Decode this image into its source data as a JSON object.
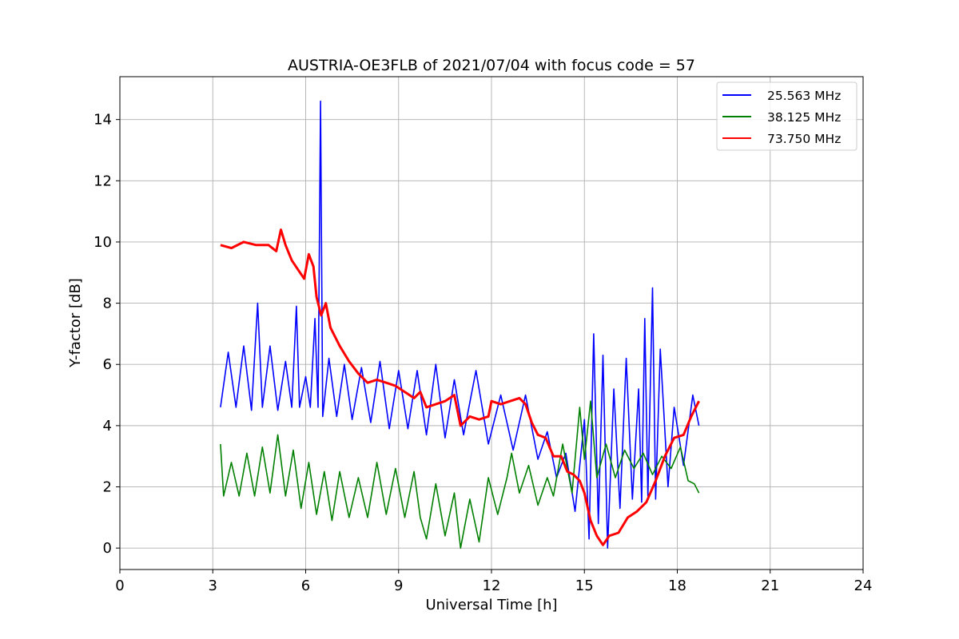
{
  "chart_data": {
    "type": "line",
    "title": "AUSTRIA-OE3FLB of 2021/07/04 with focus code = 57",
    "xlabel": "Universal Time [h]",
    "ylabel": "Y-factor [dB]",
    "xlim": [
      0,
      24
    ],
    "ylim": [
      -0.7,
      15.4
    ],
    "xticks": [
      0,
      3,
      6,
      9,
      12,
      15,
      18,
      21,
      24
    ],
    "yticks": [
      0,
      2,
      4,
      6,
      8,
      10,
      12,
      14
    ],
    "grid": true,
    "legend_position": "top-right",
    "series": [
      {
        "name": "25.563 MHz",
        "color": "#0000ff",
        "points": [
          [
            3.25,
            4.6
          ],
          [
            3.5,
            6.4
          ],
          [
            3.75,
            4.6
          ],
          [
            4.0,
            6.6
          ],
          [
            4.25,
            4.5
          ],
          [
            4.45,
            8.0
          ],
          [
            4.6,
            4.6
          ],
          [
            4.85,
            6.6
          ],
          [
            5.1,
            4.5
          ],
          [
            5.35,
            6.1
          ],
          [
            5.55,
            4.6
          ],
          [
            5.7,
            7.9
          ],
          [
            5.8,
            4.6
          ],
          [
            6.0,
            5.6
          ],
          [
            6.15,
            4.6
          ],
          [
            6.3,
            7.5
          ],
          [
            6.4,
            4.6
          ],
          [
            6.48,
            14.6
          ],
          [
            6.55,
            4.3
          ],
          [
            6.75,
            6.2
          ],
          [
            7.0,
            4.3
          ],
          [
            7.25,
            6.0
          ],
          [
            7.5,
            4.2
          ],
          [
            7.8,
            5.9
          ],
          [
            8.1,
            4.1
          ],
          [
            8.4,
            6.1
          ],
          [
            8.7,
            3.9
          ],
          [
            9.0,
            5.8
          ],
          [
            9.3,
            3.9
          ],
          [
            9.6,
            5.8
          ],
          [
            9.9,
            3.7
          ],
          [
            10.2,
            6.0
          ],
          [
            10.5,
            3.6
          ],
          [
            10.8,
            5.5
          ],
          [
            11.1,
            3.7
          ],
          [
            11.5,
            5.8
          ],
          [
            11.9,
            3.4
          ],
          [
            12.3,
            5.0
          ],
          [
            12.7,
            3.2
          ],
          [
            13.1,
            5.0
          ],
          [
            13.5,
            2.9
          ],
          [
            13.8,
            3.8
          ],
          [
            14.1,
            2.3
          ],
          [
            14.4,
            3.1
          ],
          [
            14.7,
            1.2
          ],
          [
            15.0,
            4.2
          ],
          [
            15.15,
            0.3
          ],
          [
            15.3,
            7.0
          ],
          [
            15.45,
            0.8
          ],
          [
            15.6,
            6.3
          ],
          [
            15.75,
            0.0
          ],
          [
            15.95,
            5.2
          ],
          [
            16.15,
            1.3
          ],
          [
            16.35,
            6.2
          ],
          [
            16.55,
            1.6
          ],
          [
            16.75,
            5.2
          ],
          [
            16.85,
            1.5
          ],
          [
            16.95,
            7.5
          ],
          [
            17.05,
            1.7
          ],
          [
            17.2,
            8.5
          ],
          [
            17.3,
            1.6
          ],
          [
            17.45,
            6.5
          ],
          [
            17.7,
            2.0
          ],
          [
            17.9,
            4.6
          ],
          [
            18.2,
            2.7
          ],
          [
            18.5,
            5.0
          ],
          [
            18.7,
            4.0
          ]
        ]
      },
      {
        "name": "38.125 MHz",
        "color": "#008000",
        "points": [
          [
            3.25,
            3.4
          ],
          [
            3.35,
            1.7
          ],
          [
            3.6,
            2.8
          ],
          [
            3.85,
            1.7
          ],
          [
            4.1,
            3.1
          ],
          [
            4.35,
            1.7
          ],
          [
            4.6,
            3.3
          ],
          [
            4.85,
            1.8
          ],
          [
            5.1,
            3.7
          ],
          [
            5.35,
            1.7
          ],
          [
            5.6,
            3.2
          ],
          [
            5.85,
            1.3
          ],
          [
            6.1,
            2.8
          ],
          [
            6.35,
            1.1
          ],
          [
            6.6,
            2.5
          ],
          [
            6.85,
            0.9
          ],
          [
            7.1,
            2.5
          ],
          [
            7.4,
            1.0
          ],
          [
            7.7,
            2.3
          ],
          [
            8.0,
            1.0
          ],
          [
            8.3,
            2.8
          ],
          [
            8.6,
            1.1
          ],
          [
            8.9,
            2.6
          ],
          [
            9.2,
            1.0
          ],
          [
            9.5,
            2.5
          ],
          [
            9.7,
            1.0
          ],
          [
            9.9,
            0.3
          ],
          [
            10.2,
            2.1
          ],
          [
            10.5,
            0.4
          ],
          [
            10.8,
            1.8
          ],
          [
            11.0,
            0.0
          ],
          [
            11.3,
            1.6
          ],
          [
            11.6,
            0.2
          ],
          [
            11.9,
            2.3
          ],
          [
            12.2,
            1.1
          ],
          [
            12.5,
            2.3
          ],
          [
            12.65,
            3.1
          ],
          [
            12.9,
            1.8
          ],
          [
            13.2,
            2.7
          ],
          [
            13.5,
            1.4
          ],
          [
            13.8,
            2.3
          ],
          [
            14.0,
            1.7
          ],
          [
            14.3,
            3.4
          ],
          [
            14.6,
            1.8
          ],
          [
            14.85,
            4.6
          ],
          [
            15.0,
            2.9
          ],
          [
            15.2,
            4.8
          ],
          [
            15.4,
            2.3
          ],
          [
            15.7,
            3.4
          ],
          [
            16.0,
            2.3
          ],
          [
            16.3,
            3.2
          ],
          [
            16.6,
            2.6
          ],
          [
            16.9,
            3.1
          ],
          [
            17.2,
            2.4
          ],
          [
            17.5,
            3.0
          ],
          [
            17.8,
            2.6
          ],
          [
            18.1,
            3.3
          ],
          [
            18.35,
            2.2
          ],
          [
            18.55,
            2.1
          ],
          [
            18.7,
            1.8
          ]
        ]
      },
      {
        "name": "73.750 MHz",
        "color": "#ff0000",
        "points": [
          [
            3.25,
            9.9
          ],
          [
            3.6,
            9.8
          ],
          [
            4.0,
            10.0
          ],
          [
            4.4,
            9.9
          ],
          [
            4.8,
            9.9
          ],
          [
            5.05,
            9.7
          ],
          [
            5.2,
            10.4
          ],
          [
            5.35,
            9.9
          ],
          [
            5.55,
            9.4
          ],
          [
            5.75,
            9.1
          ],
          [
            5.95,
            8.8
          ],
          [
            6.1,
            9.6
          ],
          [
            6.25,
            9.2
          ],
          [
            6.35,
            8.2
          ],
          [
            6.5,
            7.6
          ],
          [
            6.65,
            8.0
          ],
          [
            6.8,
            7.2
          ],
          [
            7.1,
            6.6
          ],
          [
            7.4,
            6.1
          ],
          [
            7.7,
            5.7
          ],
          [
            8.0,
            5.4
          ],
          [
            8.3,
            5.5
          ],
          [
            8.6,
            5.4
          ],
          [
            8.9,
            5.3
          ],
          [
            9.2,
            5.1
          ],
          [
            9.5,
            4.9
          ],
          [
            9.7,
            5.1
          ],
          [
            9.9,
            4.6
          ],
          [
            10.2,
            4.7
          ],
          [
            10.5,
            4.8
          ],
          [
            10.8,
            5.0
          ],
          [
            11.0,
            4.0
          ],
          [
            11.3,
            4.3
          ],
          [
            11.6,
            4.2
          ],
          [
            11.9,
            4.3
          ],
          [
            12.0,
            4.8
          ],
          [
            12.3,
            4.7
          ],
          [
            12.6,
            4.8
          ],
          [
            12.9,
            4.9
          ],
          [
            13.1,
            4.7
          ],
          [
            13.3,
            4.1
          ],
          [
            13.5,
            3.7
          ],
          [
            13.75,
            3.6
          ],
          [
            14.0,
            3.0
          ],
          [
            14.25,
            3.0
          ],
          [
            14.45,
            2.5
          ],
          [
            14.65,
            2.4
          ],
          [
            14.85,
            2.2
          ],
          [
            15.0,
            1.8
          ],
          [
            15.2,
            0.9
          ],
          [
            15.4,
            0.4
          ],
          [
            15.6,
            0.1
          ],
          [
            15.8,
            0.4
          ],
          [
            16.1,
            0.5
          ],
          [
            16.4,
            1.0
          ],
          [
            16.7,
            1.2
          ],
          [
            17.0,
            1.5
          ],
          [
            17.3,
            2.2
          ],
          [
            17.6,
            3.0
          ],
          [
            17.9,
            3.6
          ],
          [
            18.2,
            3.7
          ],
          [
            18.45,
            4.3
          ],
          [
            18.7,
            4.8
          ]
        ]
      }
    ]
  }
}
